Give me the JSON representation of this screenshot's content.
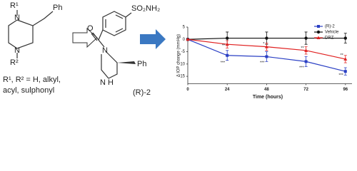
{
  "scaffold": {
    "r1": "R¹",
    "ph": "Ph",
    "n_top": "N",
    "n_bottom": "N",
    "r2": "R²",
    "note_line1": "R¹, R² = H, alkyl,",
    "note_line2": "acyl, sulphonyl"
  },
  "compound": {
    "sulfonamide": "SO₂NH₂",
    "oxygen": "O",
    "n_top": "N",
    "n_bottom": "N H",
    "ph": "Ph",
    "label": "(R)-2"
  },
  "chart_data": {
    "type": "line",
    "x_label": "Time (hours)",
    "y_label": "Δ IOP change (mmHg)",
    "x": [
      0,
      24,
      48,
      72,
      96
    ],
    "xlim": [
      0,
      100
    ],
    "xticks": [
      0,
      24,
      48,
      72,
      96
    ],
    "ylim": [
      -18,
      5
    ],
    "yticks": [
      5,
      0,
      -5,
      -10,
      -15
    ],
    "legend": "upper right",
    "series": [
      {
        "name": "(R)-2",
        "color": "#2a3fc4",
        "marker": "square",
        "values": [
          0,
          -6.5,
          -7,
          -9,
          -13
        ],
        "errors": [
          0,
          2,
          2,
          2,
          1.5
        ]
      },
      {
        "name": "Vehicle",
        "color": "#111111",
        "marker": "circle",
        "values": [
          0,
          0.5,
          0.5,
          0.5,
          0.5
        ],
        "errors": [
          0,
          2.5,
          2.5,
          2.5,
          2
        ]
      },
      {
        "name": "DRZ",
        "color": "#e02020",
        "marker": "triangle",
        "values": [
          0,
          -2,
          -3,
          -4.5,
          -8
        ],
        "errors": [
          0,
          1.5,
          1.5,
          1.5,
          1.5
        ]
      }
    ],
    "annotations": [
      {
        "text": "**",
        "x": 24,
        "y": -2.5
      },
      {
        "text": "***",
        "x": 24,
        "y": -9.5
      },
      {
        "text": "*",
        "x": 48,
        "y": -1.8
      },
      {
        "text": "***",
        "x": 48,
        "y": -9.5
      },
      {
        "text": "**",
        "x": 72,
        "y": -3.5
      },
      {
        "text": "***",
        "x": 72,
        "y": -11.5
      },
      {
        "text": "**",
        "x": 96,
        "y": -6.5
      },
      {
        "text": "***",
        "x": 96,
        "y": -14.5
      }
    ]
  }
}
